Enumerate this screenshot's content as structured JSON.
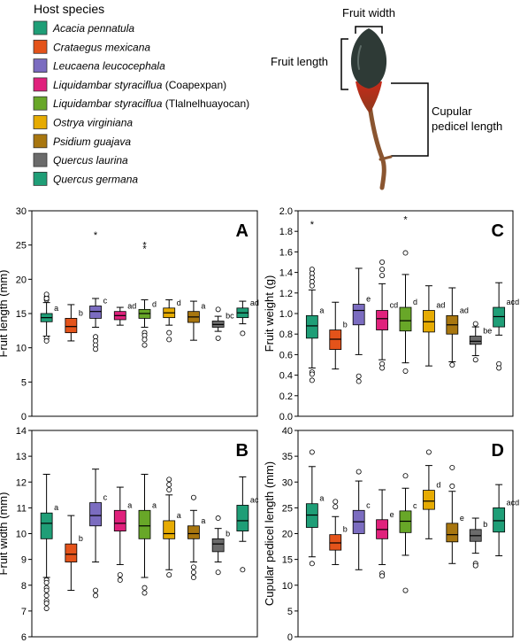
{
  "legend": {
    "title": "Host species",
    "items": [
      {
        "name": "Acacia pennatula",
        "suffix": "",
        "color": "#1f9e77"
      },
      {
        "name": "Crataegus mexicana",
        "suffix": "",
        "color": "#e4531a"
      },
      {
        "name": "Leucaena leucocephala",
        "suffix": "",
        "color": "#7b6cc0"
      },
      {
        "name": "Liquidambar styraciflua",
        "suffix": " (Coapexpan)",
        "color": "#e0217c"
      },
      {
        "name": "Liquidambar styraciflua",
        "suffix": " (Tlalnelhuayocan)",
        "color": "#68a728"
      },
      {
        "name": "Ostrya virginiana",
        "suffix": "",
        "color": "#e6ab02"
      },
      {
        "name": "Psidium guajava",
        "suffix": "",
        "color": "#a8760f"
      },
      {
        "name": "Quercus laurina",
        "suffix": "",
        "color": "#6b6b6b"
      },
      {
        "name": "Quercus germana",
        "suffix": "",
        "color": "#1f9e77"
      }
    ]
  },
  "diagram": {
    "fruit_width": "Fruit width",
    "fruit_length": "Fruit length",
    "cupular_line1": "Cupular",
    "cupular_line2": "pedicel length"
  },
  "chart_data": [
    {
      "type": "box",
      "panel": "A",
      "ylabel": "Fruit length (mm)",
      "ylim": [
        0,
        30
      ],
      "yticks": [
        0,
        5,
        10,
        15,
        20,
        25,
        30
      ],
      "boxes": [
        {
          "q1": 13.8,
          "med": 14.4,
          "q3": 15.0,
          "lo": 11.7,
          "hi": 16.6,
          "outliers": [
            17.0,
            17.4,
            17.8,
            17.2,
            11.4,
            11.0
          ],
          "stars": [],
          "label": "a"
        },
        {
          "q1": 12.2,
          "med": 13.1,
          "q3": 14.3,
          "lo": 11.0,
          "hi": 16.3,
          "outliers": [],
          "stars": [],
          "label": "b"
        },
        {
          "q1": 14.3,
          "med": 15.3,
          "q3": 16.1,
          "lo": 13.0,
          "hi": 17.2,
          "outliers": [
            11.6,
            11.0,
            10.4,
            9.8
          ],
          "stars": [
            26.5
          ],
          "label": "c"
        },
        {
          "q1": 14.1,
          "med": 14.7,
          "q3": 15.3,
          "lo": 13.3,
          "hi": 15.9,
          "outliers": [],
          "stars": [],
          "label": "ad"
        },
        {
          "q1": 14.3,
          "med": 15.0,
          "q3": 15.6,
          "lo": 13.0,
          "hi": 17.0,
          "outliers": [
            12.2,
            11.8,
            11.2,
            10.4
          ],
          "stars": [
            25.0,
            24.5
          ],
          "label": "d"
        },
        {
          "q1": 14.4,
          "med": 15.1,
          "q3": 15.8,
          "lo": 13.3,
          "hi": 17.0,
          "outliers": [
            12.2,
            11.2
          ],
          "stars": [],
          "label": "d"
        },
        {
          "q1": 13.7,
          "med": 14.5,
          "q3": 15.3,
          "lo": 11.1,
          "hi": 16.8,
          "outliers": [],
          "stars": [],
          "label": "a"
        },
        {
          "q1": 13.0,
          "med": 13.4,
          "q3": 13.9,
          "lo": 12.4,
          "hi": 14.6,
          "outliers": [
            15.6,
            11.4
          ],
          "stars": [],
          "label": "bc"
        },
        {
          "q1": 14.4,
          "med": 15.1,
          "q3": 15.8,
          "lo": 13.5,
          "hi": 16.8,
          "outliers": [
            12.1
          ],
          "stars": [],
          "label": "ad"
        }
      ]
    },
    {
      "type": "box",
      "panel": "C",
      "ylabel": "Fruit weight (g)",
      "ylim": [
        0,
        2.0
      ],
      "yticks": [
        "0.0",
        "0.2",
        "0.4",
        "0.6",
        "0.8",
        "1.0",
        "1.2",
        "1.4",
        "1.6",
        "1.8",
        "2.0"
      ],
      "boxes": [
        {
          "q1": 0.76,
          "med": 0.88,
          "q3": 0.98,
          "lo": 0.47,
          "hi": 1.23,
          "outliers": [
            1.43,
            1.39,
            1.35,
            1.31,
            1.27,
            0.43,
            0.41,
            0.35
          ],
          "stars": [
            1.87
          ],
          "label": "a"
        },
        {
          "q1": 0.65,
          "med": 0.75,
          "q3": 0.84,
          "lo": 0.46,
          "hi": 1.11,
          "outliers": [],
          "stars": [],
          "label": "b"
        },
        {
          "q1": 0.89,
          "med": 1.03,
          "q3": 1.09,
          "lo": 0.6,
          "hi": 1.44,
          "outliers": [
            0.39,
            0.34
          ],
          "stars": [],
          "label": "e"
        },
        {
          "q1": 0.84,
          "med": 0.95,
          "q3": 1.03,
          "lo": 0.55,
          "hi": 1.29,
          "outliers": [
            1.5,
            1.43,
            1.37,
            0.51,
            0.47
          ],
          "stars": [],
          "label": "cd"
        },
        {
          "q1": 0.83,
          "med": 0.93,
          "q3": 1.06,
          "lo": 0.52,
          "hi": 1.38,
          "outliers": [
            1.59,
            0.44
          ],
          "stars": [
            1.92
          ],
          "label": "d"
        },
        {
          "q1": 0.82,
          "med": 0.92,
          "q3": 1.03,
          "lo": 0.49,
          "hi": 1.27,
          "outliers": [],
          "stars": [],
          "label": "ad"
        },
        {
          "q1": 0.8,
          "med": 0.89,
          "q3": 0.98,
          "lo": 0.53,
          "hi": 1.25,
          "outliers": [
            0.5
          ],
          "stars": [],
          "label": "ad"
        },
        {
          "q1": 0.7,
          "med": 0.73,
          "q3": 0.78,
          "lo": 0.59,
          "hi": 0.87,
          "outliers": [
            0.9,
            0.55
          ],
          "stars": [],
          "label": "be"
        },
        {
          "q1": 0.87,
          "med": 0.97,
          "q3": 1.06,
          "lo": 0.79,
          "hi": 1.3,
          "outliers": [
            0.51,
            0.47
          ],
          "stars": [],
          "label": "acd"
        }
      ]
    },
    {
      "type": "box",
      "panel": "B",
      "ylabel": "Fruit width (mm)",
      "ylim": [
        6,
        14
      ],
      "yticks": [
        6,
        7,
        8,
        9,
        10,
        11,
        12,
        13,
        14
      ],
      "boxes": [
        {
          "q1": 9.8,
          "med": 10.4,
          "q3": 10.8,
          "lo": 8.3,
          "hi": 12.3,
          "outliers": [
            8.2,
            8.1,
            7.9,
            7.8,
            7.6,
            7.4,
            7.3,
            7.1
          ],
          "stars": [],
          "label": "a"
        },
        {
          "q1": 8.9,
          "med": 9.2,
          "q3": 9.6,
          "lo": 7.8,
          "hi": 10.7,
          "outliers": [],
          "stars": [],
          "label": "b"
        },
        {
          "q1": 10.3,
          "med": 10.7,
          "q3": 11.2,
          "lo": 8.9,
          "hi": 12.5,
          "outliers": [
            7.8,
            7.6
          ],
          "stars": [],
          "label": "c"
        },
        {
          "q1": 10.1,
          "med": 10.4,
          "q3": 10.9,
          "lo": 8.8,
          "hi": 11.8,
          "outliers": [
            8.4,
            8.2
          ],
          "stars": [],
          "label": "a"
        },
        {
          "q1": 9.8,
          "med": 10.3,
          "q3": 10.9,
          "lo": 8.3,
          "hi": 12.3,
          "outliers": [
            7.9,
            7.7
          ],
          "stars": [],
          "label": "a"
        },
        {
          "q1": 9.8,
          "med": 10.0,
          "q3": 10.5,
          "lo": 8.6,
          "hi": 11.5,
          "outliers": [
            12.1,
            11.9,
            11.7,
            8.4
          ],
          "stars": [],
          "label": "a"
        },
        {
          "q1": 9.8,
          "med": 10.0,
          "q3": 10.3,
          "lo": 8.9,
          "hi": 10.9,
          "outliers": [
            11.4,
            8.7,
            8.5,
            8.3
          ],
          "stars": [],
          "label": "a"
        },
        {
          "q1": 9.3,
          "med": 9.6,
          "q3": 9.8,
          "lo": 8.9,
          "hi": 10.2,
          "outliers": [
            10.6,
            8.5
          ],
          "stars": [],
          "label": "b"
        },
        {
          "q1": 10.1,
          "med": 10.5,
          "q3": 11.1,
          "lo": 9.7,
          "hi": 12.2,
          "outliers": [
            8.6
          ],
          "stars": [],
          "label": "ac"
        }
      ]
    },
    {
      "type": "box",
      "panel": "D",
      "ylabel": "Cupular pedicel length (mm)",
      "ylim": [
        0,
        40
      ],
      "yticks": [
        0,
        5,
        10,
        15,
        20,
        25,
        30,
        35,
        40
      ],
      "boxes": [
        {
          "q1": 21.2,
          "med": 23.6,
          "q3": 25.8,
          "lo": 15.5,
          "hi": 33.0,
          "outliers": [
            35.8,
            14.2
          ],
          "stars": [],
          "label": "a"
        },
        {
          "q1": 16.8,
          "med": 18.2,
          "q3": 19.8,
          "lo": 14.0,
          "hi": 23.3,
          "outliers": [
            26.2,
            25.2
          ],
          "stars": [],
          "label": "b"
        },
        {
          "q1": 20.0,
          "med": 22.3,
          "q3": 24.5,
          "lo": 13.0,
          "hi": 30.2,
          "outliers": [
            32.0
          ],
          "stars": [],
          "label": "c"
        },
        {
          "q1": 19.0,
          "med": 20.8,
          "q3": 22.7,
          "lo": 14.0,
          "hi": 28.5,
          "outliers": [
            12.3,
            11.8
          ],
          "stars": [],
          "label": "e"
        },
        {
          "q1": 20.2,
          "med": 22.4,
          "q3": 24.4,
          "lo": 15.8,
          "hi": 28.8,
          "outliers": [
            31.2,
            9.0
          ],
          "stars": [],
          "label": "c"
        },
        {
          "q1": 24.7,
          "med": 26.3,
          "q3": 28.4,
          "lo": 19.0,
          "hi": 33.2,
          "outliers": [
            35.8
          ],
          "stars": [],
          "label": "d"
        },
        {
          "q1": 18.4,
          "med": 19.8,
          "q3": 22.0,
          "lo": 14.2,
          "hi": 28.2,
          "outliers": [
            32.8,
            29.2
          ],
          "stars": [],
          "label": "e"
        },
        {
          "q1": 18.5,
          "med": 19.6,
          "q3": 20.8,
          "lo": 16.2,
          "hi": 23.0,
          "outliers": [
            14.2,
            13.8
          ],
          "stars": [],
          "label": "b"
        },
        {
          "q1": 20.3,
          "med": 22.5,
          "q3": 25.0,
          "lo": 15.7,
          "hi": 29.5,
          "outliers": [],
          "stars": [],
          "label": "acd"
        }
      ]
    }
  ]
}
